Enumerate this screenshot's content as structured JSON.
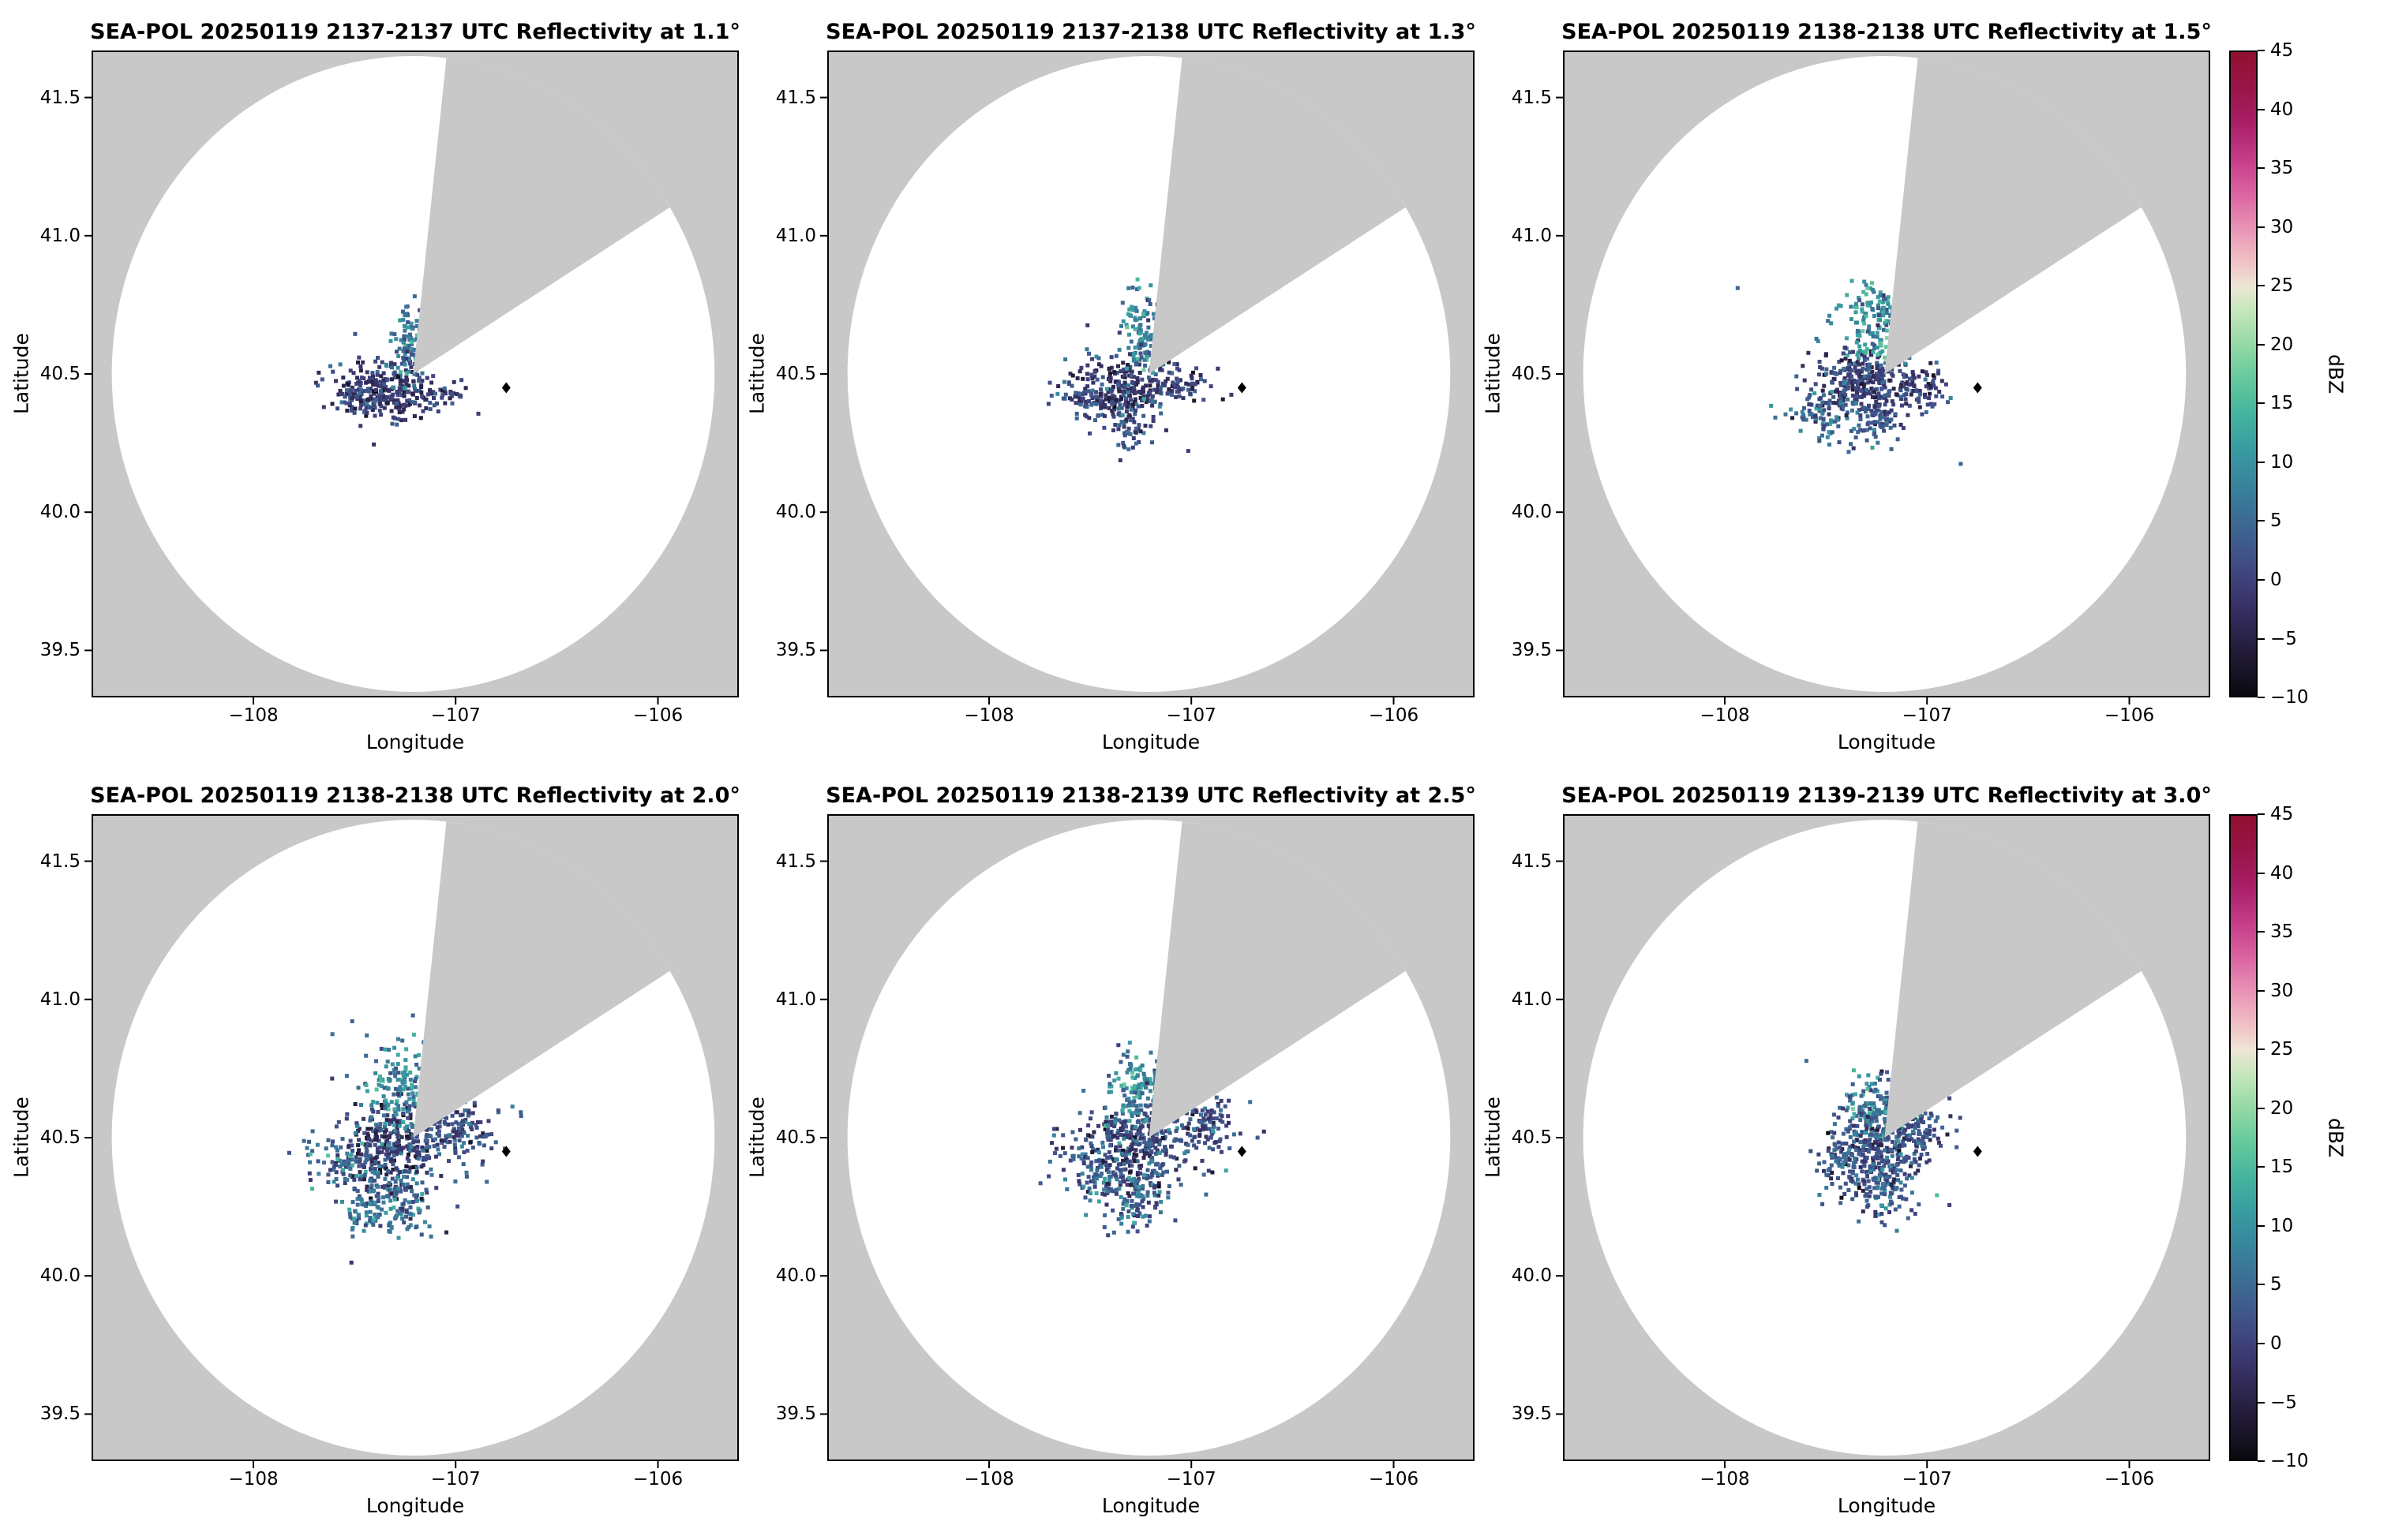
{
  "colors": {
    "background": "#ffffff",
    "outside": "#c8c8c8",
    "circle": "#ffffff",
    "spine": "#000000",
    "marker": "#000000"
  },
  "chart_data": {
    "type": "heatmap",
    "description": "2x3 grid of SEA-POL radar PPI reflectivity maps at increasing elevation angles; gray ring is area outside radar coverage, gray wedge is a blocked/missing azimuth sector, colored pixels are reflectivity echoes near the radar, black diamond is a site marker.",
    "axes": {
      "xlabel": "Longitude",
      "ylabel": "Latitude",
      "xticks": [
        -108,
        -107,
        -106
      ],
      "xtick_labels": [
        "−108",
        "−107",
        "−106"
      ],
      "yticks": [
        41.5,
        41.0,
        40.5,
        40.0,
        39.5
      ],
      "ytick_labels": [
        "41.5",
        "41.0",
        "40.5",
        "40.0",
        "39.5"
      ],
      "xlim": [
        -108.8,
        -105.6
      ],
      "ylim": [
        39.33,
        41.67
      ]
    },
    "radar": {
      "center_lon": -107.21,
      "center_lat": 40.5,
      "radius_lon": 1.49,
      "radius_lat": 1.15,
      "wedge_az_start": 6,
      "wedge_az_end": 57
    },
    "site_marker": {
      "lon": -106.75,
      "lat": 40.45
    },
    "colorbar": {
      "label": "dBZ",
      "min": -10,
      "max": 45,
      "ticks": [
        45,
        40,
        35,
        30,
        25,
        20,
        15,
        10,
        5,
        0,
        -5,
        -10
      ],
      "tick_labels": [
        "45",
        "40",
        "35",
        "30",
        "25",
        "20",
        "15",
        "10",
        "5",
        "0",
        "−5",
        "−10"
      ],
      "stops": [
        {
          "v": -10,
          "c": "#0a0a10"
        },
        {
          "v": -7,
          "c": "#1e1830"
        },
        {
          "v": -4,
          "c": "#2f2752"
        },
        {
          "v": -1,
          "c": "#3d3a74"
        },
        {
          "v": 2,
          "c": "#405289"
        },
        {
          "v": 5,
          "c": "#3c6b94"
        },
        {
          "v": 8,
          "c": "#38839c"
        },
        {
          "v": 11,
          "c": "#389ba1"
        },
        {
          "v": 14,
          "c": "#44b39e"
        },
        {
          "v": 17,
          "c": "#63c89c"
        },
        {
          "v": 20,
          "c": "#93d9a5"
        },
        {
          "v": 23,
          "c": "#c6e7bc"
        },
        {
          "v": 25,
          "c": "#eee6d5"
        },
        {
          "v": 27,
          "c": "#f0c2c6"
        },
        {
          "v": 30,
          "c": "#e892b5"
        },
        {
          "v": 33,
          "c": "#da62a0"
        },
        {
          "v": 36,
          "c": "#c43b87"
        },
        {
          "v": 39,
          "c": "#a81e66"
        },
        {
          "v": 42,
          "c": "#991548"
        },
        {
          "v": 45,
          "c": "#8f1030"
        }
      ]
    },
    "panels": [
      {
        "title": "SEA-POL 20250119 2137-2137 UTC Reflectivity at 1.1°",
        "elevation_deg": 1.1,
        "time_utc": "2137-2137",
        "seed": 11,
        "clusters": [
          {
            "c": [
              -107.33,
              40.44
            ],
            "r": [
              0.1,
              0.045
            ],
            "rot": 0,
            "n": 200,
            "dbz": [
              -2,
              3
            ]
          },
          {
            "c": [
              -107.5,
              40.42
            ],
            "r": [
              0.09,
              0.03
            ],
            "rot": -6,
            "n": 70,
            "dbz": [
              0,
              3
            ]
          },
          {
            "c": [
              -107.23,
              40.63
            ],
            "r": [
              0.035,
              0.085
            ],
            "rot": 6,
            "n": 80,
            "dbz": [
              7,
              4
            ]
          },
          {
            "c": [
              -107.05,
              40.43
            ],
            "r": [
              0.05,
              0.03
            ],
            "rot": 0,
            "n": 35,
            "dbz": [
              -1,
              3
            ]
          },
          {
            "c": [
              -107.3,
              40.47
            ],
            "r": [
              0.17,
              0.1
            ],
            "rot": 0,
            "n": 40,
            "dbz": [
              2,
              4
            ]
          }
        ]
      },
      {
        "title": "SEA-POL 20250119 2137-2138 UTC Reflectivity at 1.3°",
        "elevation_deg": 1.3,
        "time_utc": "2137-2138",
        "seed": 12,
        "clusters": [
          {
            "c": [
              -107.33,
              40.45
            ],
            "r": [
              0.11,
              0.05
            ],
            "rot": 0,
            "n": 220,
            "dbz": [
              -2,
              3
            ]
          },
          {
            "c": [
              -107.51,
              40.4
            ],
            "r": [
              0.08,
              0.035
            ],
            "rot": -8,
            "n": 60,
            "dbz": [
              1,
              3
            ]
          },
          {
            "c": [
              -107.24,
              40.65
            ],
            "r": [
              0.04,
              0.095
            ],
            "rot": 7,
            "n": 110,
            "dbz": [
              8,
              4
            ]
          },
          {
            "c": [
              -107.03,
              40.46
            ],
            "r": [
              0.06,
              0.035
            ],
            "rot": 0,
            "n": 55,
            "dbz": [
              0,
              3
            ]
          },
          {
            "c": [
              -107.3,
              40.31
            ],
            "r": [
              0.055,
              0.04
            ],
            "rot": 0,
            "n": 45,
            "dbz": [
              2,
              3
            ]
          },
          {
            "c": [
              -107.28,
              40.48
            ],
            "r": [
              0.18,
              0.11
            ],
            "rot": 0,
            "n": 40,
            "dbz": [
              3,
              4
            ]
          }
        ]
      },
      {
        "title": "SEA-POL 20250119 2138-2138 UTC Reflectivity at 1.5°",
        "elevation_deg": 1.5,
        "time_utc": "2138-2138",
        "seed": 13,
        "clusters": [
          {
            "c": [
              -107.32,
              40.46
            ],
            "r": [
              0.115,
              0.06
            ],
            "rot": 0,
            "n": 260,
            "dbz": [
              -1,
              3
            ]
          },
          {
            "c": [
              -107.52,
              40.36
            ],
            "r": [
              0.095,
              0.045
            ],
            "rot": -10,
            "n": 85,
            "dbz": [
              5,
              4
            ]
          },
          {
            "c": [
              -107.26,
              40.69
            ],
            "r": [
              0.075,
              0.075
            ],
            "rot": 0,
            "n": 140,
            "dbz": [
              10,
              4
            ]
          },
          {
            "c": [
              -107.02,
              40.45
            ],
            "r": [
              0.075,
              0.045
            ],
            "rot": 0,
            "n": 70,
            "dbz": [
              0,
              3
            ]
          },
          {
            "c": [
              -107.26,
              40.32
            ],
            "r": [
              0.065,
              0.045
            ],
            "rot": 0,
            "n": 60,
            "dbz": [
              3,
              3
            ]
          },
          {
            "c": [
              -107.28,
              40.5
            ],
            "r": [
              0.2,
              0.13
            ],
            "rot": 0,
            "n": 45,
            "dbz": [
              4,
              4
            ]
          }
        ]
      },
      {
        "title": "SEA-POL 20250119 2138-2138 UTC Reflectivity at 2.0°",
        "elevation_deg": 2.0,
        "time_utc": "2138-2138",
        "seed": 21,
        "clusters": [
          {
            "c": [
              -107.3,
              40.46
            ],
            "r": [
              0.125,
              0.085
            ],
            "rot": 0,
            "n": 300,
            "dbz": [
              -1,
              4
            ]
          },
          {
            "c": [
              -107.51,
              40.4
            ],
            "r": [
              0.1,
              0.06
            ],
            "rot": -12,
            "n": 110,
            "dbz": [
              4,
              4
            ]
          },
          {
            "c": [
              -107.27,
              40.68
            ],
            "r": [
              0.085,
              0.085
            ],
            "rot": 0,
            "n": 150,
            "dbz": [
              9,
              4
            ]
          },
          {
            "c": [
              -107.0,
              40.54
            ],
            "r": [
              0.1,
              0.055
            ],
            "rot": 5,
            "n": 120,
            "dbz": [
              2,
              3
            ]
          },
          {
            "c": [
              -107.26,
              40.26
            ],
            "r": [
              0.075,
              0.06
            ],
            "rot": 0,
            "n": 95,
            "dbz": [
              5,
              4
            ]
          },
          {
            "c": [
              -107.46,
              40.24
            ],
            "r": [
              0.055,
              0.045
            ],
            "rot": 0,
            "n": 55,
            "dbz": [
              6,
              4
            ]
          },
          {
            "c": [
              -107.27,
              40.47
            ],
            "r": [
              0.23,
              0.16
            ],
            "rot": 0,
            "n": 55,
            "dbz": [
              4,
              4
            ]
          }
        ]
      },
      {
        "title": "SEA-POL 20250119 2138-2139 UTC Reflectivity at 2.5°",
        "elevation_deg": 2.5,
        "time_utc": "2138-2139",
        "seed": 22,
        "clusters": [
          {
            "c": [
              -107.29,
              40.46
            ],
            "r": [
              0.12,
              0.085
            ],
            "rot": 0,
            "n": 290,
            "dbz": [
              0,
              4
            ]
          },
          {
            "c": [
              -107.49,
              40.38
            ],
            "r": [
              0.09,
              0.055
            ],
            "rot": -10,
            "n": 95,
            "dbz": [
              4,
              4
            ]
          },
          {
            "c": [
              -107.26,
              40.67
            ],
            "r": [
              0.08,
              0.08
            ],
            "rot": 0,
            "n": 140,
            "dbz": [
              9,
              4
            ]
          },
          {
            "c": [
              -106.98,
              40.55
            ],
            "r": [
              0.105,
              0.055
            ],
            "rot": 5,
            "n": 130,
            "dbz": [
              1,
              3
            ]
          },
          {
            "c": [
              -107.27,
              40.27
            ],
            "r": [
              0.07,
              0.06
            ],
            "rot": 0,
            "n": 90,
            "dbz": [
              5,
              4
            ]
          },
          {
            "c": [
              -107.27,
              40.47
            ],
            "r": [
              0.22,
              0.15
            ],
            "rot": 0,
            "n": 50,
            "dbz": [
              4,
              4
            ]
          }
        ]
      },
      {
        "title": "SEA-POL 20250119 2139-2139 UTC Reflectivity at 3.0°",
        "elevation_deg": 3.0,
        "time_utc": "2139-2139",
        "seed": 23,
        "clusters": [
          {
            "c": [
              -107.26,
              40.45
            ],
            "r": [
              0.1,
              0.085
            ],
            "rot": 0,
            "n": 280,
            "dbz": [
              0,
              4
            ]
          },
          {
            "c": [
              -107.24,
              40.61
            ],
            "r": [
              0.08,
              0.055
            ],
            "rot": 0,
            "n": 130,
            "dbz": [
              8,
              4
            ]
          },
          {
            "c": [
              -107.06,
              40.52
            ],
            "r": [
              0.08,
              0.05
            ],
            "rot": 0,
            "n": 95,
            "dbz": [
              1,
              3
            ]
          },
          {
            "c": [
              -107.22,
              40.31
            ],
            "r": [
              0.06,
              0.055
            ],
            "rot": 0,
            "n": 85,
            "dbz": [
              4,
              4
            ]
          },
          {
            "c": [
              -107.44,
              40.42
            ],
            "r": [
              0.055,
              0.04
            ],
            "rot": 0,
            "n": 50,
            "dbz": [
              4,
              3
            ]
          },
          {
            "c": [
              -107.25,
              40.46
            ],
            "r": [
              0.19,
              0.14
            ],
            "rot": 0,
            "n": 50,
            "dbz": [
              4,
              4
            ]
          }
        ]
      }
    ]
  }
}
